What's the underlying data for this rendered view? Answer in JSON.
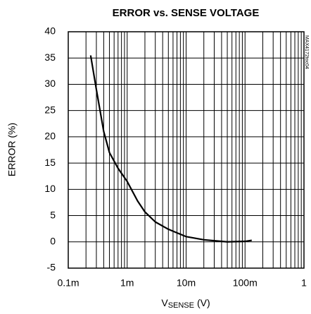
{
  "chart_data": {
    "type": "line",
    "title": "ERROR vs. SENSE VOLTAGE",
    "x_label": {
      "main": "V",
      "sub": "SENSE",
      "unit": "(V)"
    },
    "y_label": "ERROR (%)",
    "annotation": "MAX4172toc04",
    "x": [
      0.00024,
      0.0003,
      0.0004,
      0.0005,
      0.0007,
      0.001,
      0.0015,
      0.002,
      0.003,
      0.005,
      0.01,
      0.02,
      0.05,
      0.1,
      0.13
    ],
    "series": [
      {
        "name": "ERROR",
        "color": "#000000",
        "values": [
          35.5,
          29,
          21,
          17,
          14,
          11.5,
          7.8,
          5.7,
          3.8,
          2.4,
          1.0,
          0.4,
          0.0,
          0.1,
          0.3
        ]
      }
    ],
    "xscale": "log",
    "xlim": [
      0.0001,
      1
    ],
    "xticks": [
      {
        "value": 0.0001,
        "label": "0.1m"
      },
      {
        "value": 0.001,
        "label": "1m"
      },
      {
        "value": 0.01,
        "label": "10m"
      },
      {
        "value": 0.1,
        "label": "100m"
      },
      1
    ],
    "xminor": [
      0.0002,
      0.0003,
      0.0004,
      0.0005,
      0.0006,
      0.0007,
      0.0008,
      0.0009,
      0.002,
      0.003,
      0.004,
      0.005,
      0.006,
      0.007,
      0.008,
      0.009,
      0.02,
      0.03,
      0.04,
      0.05,
      0.06,
      0.07,
      0.08,
      0.09,
      0.2,
      0.3,
      0.4,
      0.5,
      0.6,
      0.7,
      0.8,
      0.9
    ],
    "ylim": [
      -5,
      40
    ],
    "yticks": [
      -5,
      0,
      5,
      10,
      15,
      20,
      25,
      30,
      35,
      40
    ],
    "grid": true
  }
}
